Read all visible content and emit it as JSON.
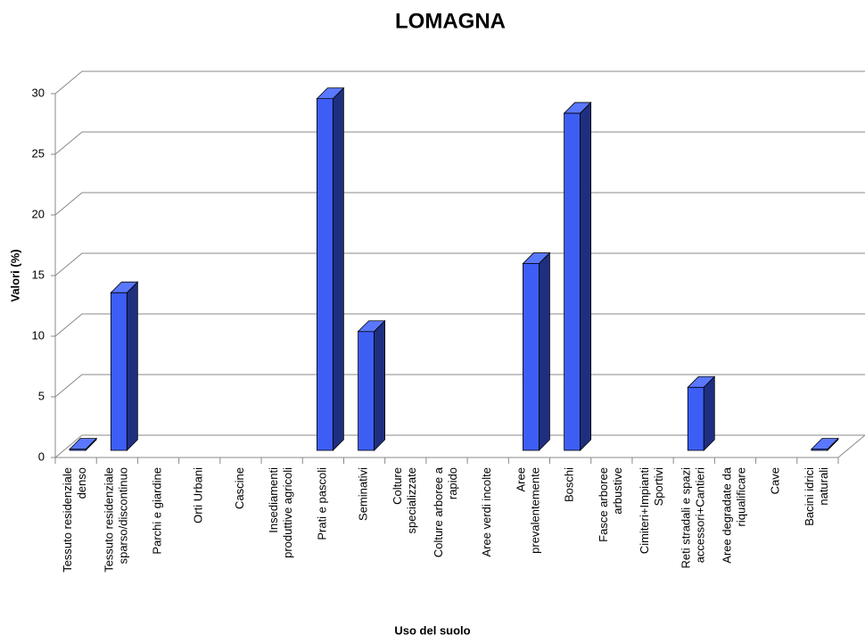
{
  "chart_data": {
    "type": "bar3d",
    "title": "LOMAGNA",
    "x_label": "Uso del suolo",
    "y_label": "Valori (%)",
    "categories": [
      "Tessuto residenziale\ndenso",
      "Tessuto residenziale\nsparso/discontinuo",
      "Parchi e giardine",
      "Orti Urbani",
      "Cascine",
      "Insediamenti\nproduttive agricoli",
      "Prati e pascoli",
      "Seminativi",
      "Colture\nspecializzate",
      "Colture arboree a\nrapido",
      "Aree verdi incolte",
      "Aree\nprevalentemente",
      "Boschi",
      "Fasce arboree\narbustive",
      "Cimiteri+Impianti\nSportivi",
      "Reti stradali e spazi\naccessori+Cantieri",
      "Aree degradate da\nriqualificare",
      "Cave",
      "Bacini idrici\nnaturali"
    ],
    "values": [
      0.1,
      13,
      0,
      0,
      0,
      0,
      29,
      9.8,
      0,
      0,
      0,
      15.4,
      27.8,
      0,
      0,
      5.2,
      0,
      0,
      0.1
    ],
    "color": "#3d5ef5",
    "ylim": [
      0,
      30
    ],
    "yticks": [
      0,
      5,
      10,
      15,
      20,
      25,
      30
    ],
    "grid": true
  }
}
